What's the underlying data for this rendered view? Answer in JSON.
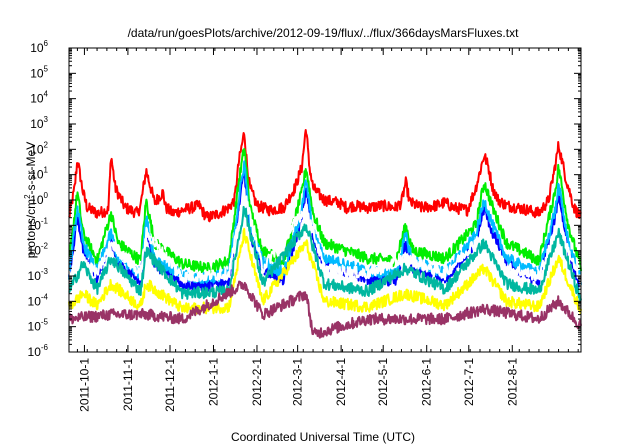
{
  "chart_data": {
    "type": "line",
    "title": "/data/run/goesPlots/archive/2012-09-19/flux/../flux/366daysMarsFluxes.txt",
    "xlabel": "Coordinated Universal Time (UTC)",
    "ylabel": {
      "prefix": "protons/cm",
      "sup": "2",
      "suffix": "-s-sr-MeV"
    },
    "yscale": "log",
    "ylim": [
      1e-06,
      1000000.0
    ],
    "xlim": [
      "2011-09-20",
      "2012-09-19"
    ],
    "y_ticks": [
      {
        "base": "10",
        "exp": "-6"
      },
      {
        "base": "10",
        "exp": "-5"
      },
      {
        "base": "10",
        "exp": "-4"
      },
      {
        "base": "10",
        "exp": "-3"
      },
      {
        "base": "10",
        "exp": "-2"
      },
      {
        "base": "10",
        "exp": "-1"
      },
      {
        "base": "10",
        "exp": "0"
      },
      {
        "base": "10",
        "exp": "1"
      },
      {
        "base": "10",
        "exp": "2"
      },
      {
        "base": "10",
        "exp": "3"
      },
      {
        "base": "10",
        "exp": "4"
      },
      {
        "base": "10",
        "exp": "5"
      },
      {
        "base": "10",
        "exp": "6"
      }
    ],
    "x_ticks": [
      {
        "label": "2011-10-1",
        "date": "2011-10-01"
      },
      {
        "label": "2011-11-1",
        "date": "2011-11-01"
      },
      {
        "label": "2011-12-1",
        "date": "2011-12-01"
      },
      {
        "label": "2012-1-1",
        "date": "2012-01-01"
      },
      {
        "label": "2012-2-1",
        "date": "2012-02-01"
      },
      {
        "label": "2012-3-1",
        "date": "2012-03-01"
      },
      {
        "label": "2012-4-1",
        "date": "2012-04-01"
      },
      {
        "label": "2012-5-1",
        "date": "2012-05-01"
      },
      {
        "label": "2012-6-1",
        "date": "2012-06-01"
      },
      {
        "label": "2012-7-1",
        "date": "2012-07-01"
      },
      {
        "label": "2012-8-1",
        "date": "2012-08-01"
      }
    ],
    "grid": false,
    "legend": "none",
    "series": [
      {
        "color": "#ff0000",
        "baseline": 0.3,
        "x": [
          "2011-09-20",
          "2011-09-24",
          "2011-09-26",
          "2011-09-30",
          "2011-10-03",
          "2011-10-10",
          "2011-10-18",
          "2011-10-20",
          "2011-10-23",
          "2011-10-30",
          "2011-11-08",
          "2011-11-10",
          "2011-11-14",
          "2011-11-20",
          "2011-11-26",
          "2011-11-28",
          "2011-12-03",
          "2011-12-10",
          "2011-12-22",
          "2011-12-25",
          "2011-12-28",
          "2012-01-05",
          "2012-01-12",
          "2012-01-16",
          "2012-01-19",
          "2012-01-23",
          "2012-01-25",
          "2012-01-27",
          "2012-02-01",
          "2012-02-10",
          "2012-02-20",
          "2012-02-28",
          "2012-03-04",
          "2012-03-07",
          "2012-03-09",
          "2012-03-12",
          "2012-03-20",
          "2012-03-30",
          "2012-04-05",
          "2012-04-10",
          "2012-04-20",
          "2012-04-30",
          "2012-05-10",
          "2012-05-14",
          "2012-05-17",
          "2012-05-20",
          "2012-05-28",
          "2012-06-08",
          "2012-06-14",
          "2012-06-20",
          "2012-06-30",
          "2012-07-06",
          "2012-07-08",
          "2012-07-12",
          "2012-07-15",
          "2012-07-18",
          "2012-07-22",
          "2012-07-28",
          "2012-08-05",
          "2012-08-12",
          "2012-08-20",
          "2012-08-27",
          "2012-09-01",
          "2012-09-03",
          "2012-09-08",
          "2012-09-14",
          "2012-09-19"
        ],
        "y": [
          0.2,
          3,
          40,
          2,
          0.5,
          0.3,
          0.4,
          60,
          3,
          0.5,
          0.3,
          0.6,
          15,
          0.8,
          2,
          0.5,
          0.3,
          0.4,
          0.6,
          0.3,
          0.2,
          0.3,
          0.5,
          1,
          30,
          500,
          20,
          3,
          0.6,
          0.4,
          0.5,
          3,
          20,
          800,
          30,
          3,
          1,
          0.8,
          0.5,
          0.6,
          0.5,
          0.6,
          0.5,
          0.8,
          5,
          0.8,
          0.5,
          0.6,
          0.8,
          0.5,
          0.4,
          3,
          8,
          60,
          20,
          3,
          1,
          0.6,
          0.5,
          0.4,
          0.3,
          1,
          30,
          150,
          8,
          0.5,
          0.2
        ]
      },
      {
        "color": "#00ee00",
        "baseline": 0.005,
        "x": [
          "2011-09-20",
          "2011-09-26",
          "2011-09-30",
          "2011-10-10",
          "2011-10-20",
          "2011-10-25",
          "2011-11-10",
          "2011-11-14",
          "2011-11-20",
          "2011-12-10",
          "2011-12-28",
          "2012-01-12",
          "2012-01-19",
          "2012-01-23",
          "2012-01-27",
          "2012-02-05",
          "2012-02-20",
          "2012-03-04",
          "2012-03-07",
          "2012-03-12",
          "2012-03-20",
          "2012-04-20",
          "2012-05-10",
          "2012-05-17",
          "2012-05-22",
          "2012-06-14",
          "2012-07-06",
          "2012-07-12",
          "2012-07-18",
          "2012-07-28",
          "2012-08-20",
          "2012-09-01",
          "2012-09-03",
          "2012-09-10",
          "2012-09-19"
        ],
        "y": [
          0.004,
          2,
          0.05,
          0.004,
          0.3,
          0.02,
          0.004,
          1,
          0.02,
          0.003,
          0.002,
          0.004,
          5,
          120,
          0.5,
          0.01,
          0.004,
          2,
          20,
          0.3,
          0.02,
          0.005,
          0.004,
          0.1,
          0.01,
          0.005,
          0.1,
          5,
          0.5,
          0.02,
          0.004,
          3,
          20,
          0.1,
          0.002
        ]
      },
      {
        "color": "#0000ff",
        "baseline": 0.0007,
        "x": [
          "2011-09-20",
          "2011-09-26",
          "2011-09-30",
          "2011-10-10",
          "2011-10-20",
          "2011-10-25",
          "2011-11-10",
          "2011-11-14",
          "2011-11-20",
          "2011-12-10",
          "2011-12-28",
          "2012-01-12",
          "2012-01-19",
          "2012-01-23",
          "2012-01-27",
          "2012-02-05",
          "2012-02-20",
          "2012-03-04",
          "2012-03-07",
          "2012-03-12",
          "2012-03-20",
          "2012-04-20",
          "2012-05-10",
          "2012-05-17",
          "2012-05-22",
          "2012-06-14",
          "2012-07-06",
          "2012-07-12",
          "2012-07-18",
          "2012-07-28",
          "2012-08-20",
          "2012-09-01",
          "2012-09-03",
          "2012-09-10",
          "2012-09-19"
        ],
        "y": [
          0.0006,
          0.2,
          0.01,
          0.0008,
          0.03,
          0.003,
          0.0007,
          0.1,
          0.003,
          0.0005,
          0.0004,
          0.0007,
          0.5,
          15,
          0.05,
          0.002,
          0.0007,
          0.2,
          3,
          0.03,
          0.003,
          0.0008,
          0.0006,
          0.02,
          0.002,
          0.0007,
          0.02,
          0.5,
          0.05,
          0.003,
          0.0006,
          0.3,
          2,
          0.01,
          0.0003
        ]
      },
      {
        "color": "#00bbff",
        "baseline": 0.0015,
        "x": [
          "2011-09-20",
          "2011-09-26",
          "2011-09-30",
          "2011-10-10",
          "2011-10-20",
          "2011-10-25",
          "2011-11-10",
          "2011-11-14",
          "2011-11-20",
          "2011-12-10",
          "2011-12-28",
          "2012-01-12",
          "2012-01-19",
          "2012-01-23",
          "2012-01-27",
          "2012-02-05",
          "2012-02-20",
          "2012-03-04",
          "2012-03-07",
          "2012-03-12",
          "2012-03-20",
          "2012-04-20",
          "2012-05-10",
          "2012-05-17",
          "2012-05-22",
          "2012-06-14",
          "2012-07-06",
          "2012-07-12",
          "2012-07-18",
          "2012-07-28",
          "2012-08-20",
          "2012-09-01",
          "2012-09-03",
          "2012-09-10",
          "2012-09-19"
        ],
        "y": [
          0.0012,
          0.5,
          0.02,
          0.0015,
          0.05,
          0.005,
          0.0012,
          0.2,
          0.005,
          0.001,
          0.0008,
          0.0013,
          1,
          30,
          0.1,
          0.004,
          0.0013,
          0.4,
          6,
          0.05,
          0.005,
          0.0015,
          0.0012,
          0.04,
          0.004,
          0.0013,
          0.04,
          1,
          0.1,
          0.005,
          0.0012,
          0.5,
          4,
          0.02,
          0.0006
        ]
      },
      {
        "color": "#ffffff",
        "baseline": 0.0012,
        "x": [
          "2011-09-20",
          "2011-09-30",
          "2011-10-10",
          "2011-10-20",
          "2011-11-10",
          "2011-11-14",
          "2011-12-10",
          "2012-01-12",
          "2012-01-23",
          "2012-02-05",
          "2012-03-07",
          "2012-03-20",
          "2012-04-20",
          "2012-05-17",
          "2012-06-14",
          "2012-07-12",
          "2012-07-28",
          "2012-08-20",
          "2012-09-03",
          "2012-09-19"
        ],
        "y": [
          0.001,
          0.005,
          0.0012,
          0.02,
          0.0011,
          0.05,
          0.0009,
          0.0012,
          2,
          0.002,
          0.5,
          0.002,
          0.0012,
          0.005,
          0.0012,
          0.05,
          0.002,
          0.001,
          0.1,
          0.0005
        ]
      },
      {
        "color": "#00b7a0",
        "baseline": 0.00025,
        "x": [
          "2011-09-20",
          "2011-09-30",
          "2011-10-10",
          "2011-10-20",
          "2011-11-10",
          "2011-11-14",
          "2011-12-10",
          "2012-01-12",
          "2012-01-23",
          "2012-02-05",
          "2012-03-07",
          "2012-03-20",
          "2012-04-20",
          "2012-05-17",
          "2012-06-14",
          "2012-07-12",
          "2012-07-28",
          "2012-08-20",
          "2012-09-03",
          "2012-09-19"
        ],
        "y": [
          0.00025,
          0.003,
          0.0003,
          0.005,
          0.00025,
          0.01,
          0.0002,
          0.00025,
          0.5,
          0.0005,
          0.1,
          0.0005,
          0.00025,
          0.002,
          0.0003,
          0.02,
          0.0005,
          0.00025,
          0.05,
          0.0001
        ]
      },
      {
        "color": "#ffff00",
        "baseline": 6e-05,
        "x": [
          "2011-09-20",
          "2011-09-30",
          "2011-10-10",
          "2011-10-20",
          "2011-11-10",
          "2011-11-14",
          "2011-12-10",
          "2012-01-12",
          "2012-01-23",
          "2012-02-05",
          "2012-03-07",
          "2012-03-20",
          "2012-04-20",
          "2012-05-17",
          "2012-06-14",
          "2012-07-12",
          "2012-07-28",
          "2012-08-20",
          "2012-09-03",
          "2012-09-19"
        ],
        "y": [
          6e-05,
          0.0002,
          7e-05,
          0.0005,
          6e-05,
          0.0005,
          5e-05,
          6e-05,
          0.05,
          0.0001,
          0.02,
          0.0001,
          6e-05,
          0.0002,
          7e-05,
          0.002,
          0.0001,
          6e-05,
          0.005,
          4e-05
        ]
      },
      {
        "color": "#993366",
        "baseline": 2e-05,
        "x": [
          "2011-09-20",
          "2011-10-20",
          "2011-11-14",
          "2011-12-10",
          "2012-01-23",
          "2012-02-05",
          "2012-03-07",
          "2012-03-12",
          "2012-04-20",
          "2012-06-14",
          "2012-07-12",
          "2012-08-20",
          "2012-09-03",
          "2012-09-19"
        ],
        "y": [
          2e-05,
          3e-05,
          3e-05,
          2e-05,
          0.0005,
          3e-05,
          0.0002,
          5e-06,
          2e-05,
          2e-05,
          5e-05,
          2e-05,
          0.0001,
          1e-05
        ]
      }
    ]
  }
}
